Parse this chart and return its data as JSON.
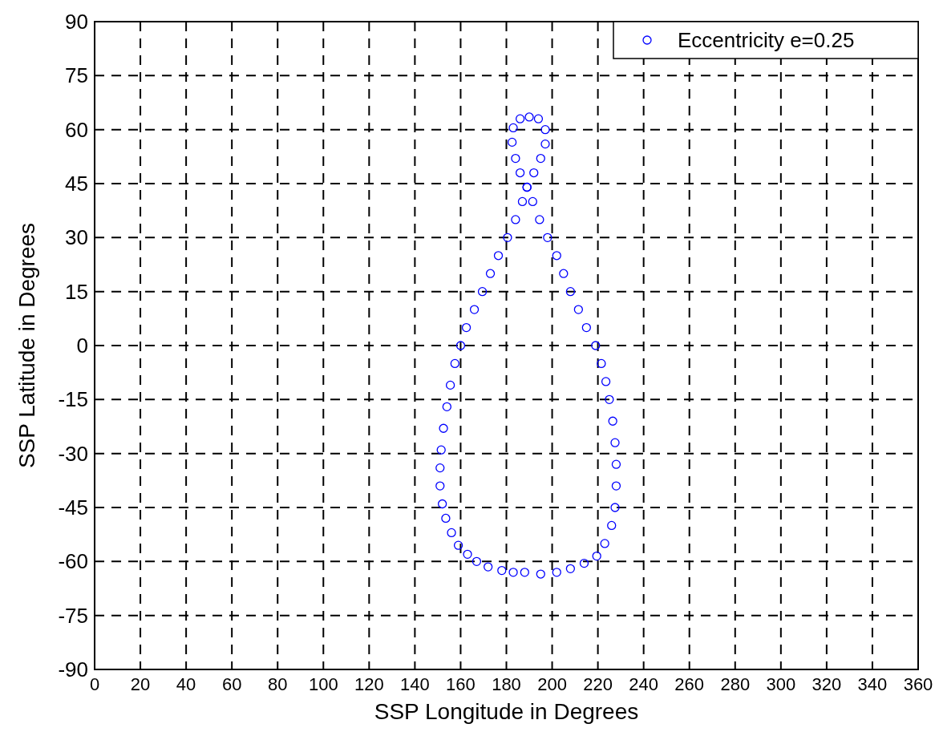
{
  "chart_data": {
    "type": "scatter",
    "xlabel": "SSP Longitude in Degrees",
    "ylabel": "SSP Latitude in Degrees",
    "xlim": [
      0,
      360
    ],
    "xticks": [
      0,
      20,
      40,
      60,
      80,
      100,
      120,
      140,
      160,
      180,
      200,
      220,
      240,
      260,
      280,
      300,
      320,
      340,
      360
    ],
    "ylim": [
      -90,
      90
    ],
    "yticks": [
      -90,
      -75,
      -60,
      -45,
      -30,
      -15,
      0,
      15,
      30,
      45,
      60,
      75,
      90
    ],
    "grid": true,
    "legend": "top right",
    "marker": "circle",
    "series": [
      {
        "name": "Eccentricity e=0.25",
        "color": "#0000ff",
        "x": [
          188,
          183,
          178,
          172,
          167,
          163,
          159,
          156,
          153.5,
          152,
          151,
          151,
          151.5,
          152.5,
          154,
          155.5,
          157.5,
          160,
          162.5,
          166,
          169.5,
          173,
          176.5,
          180.5,
          184,
          187,
          189,
          192,
          195,
          197,
          197,
          194,
          190,
          186,
          183,
          182.5,
          184,
          186,
          189,
          191.5,
          194.5,
          198,
          202,
          205,
          208,
          211.5,
          215,
          219,
          221.5,
          223.5,
          225,
          226.5,
          227.5,
          228,
          228,
          227.5,
          226,
          223,
          219.5,
          214,
          208,
          202,
          195
        ],
        "values": [
          -63,
          -63,
          -62.5,
          -61.5,
          -60,
          -58,
          -55.5,
          -52,
          -48,
          -44,
          -39,
          -34,
          -29,
          -23,
          -17,
          -11,
          -5,
          0,
          5,
          10,
          15,
          20,
          25,
          30,
          35,
          40,
          44,
          48,
          52,
          56,
          60,
          63,
          63.5,
          63,
          60.5,
          56.5,
          52,
          48,
          44,
          40,
          35,
          30,
          25,
          20,
          15,
          10,
          5,
          0,
          -5,
          -10,
          -15,
          -21,
          -27,
          -33,
          -39,
          -45,
          -50,
          -55,
          -58.5,
          -60.5,
          -62,
          -63,
          -63.5
        ]
      }
    ]
  }
}
